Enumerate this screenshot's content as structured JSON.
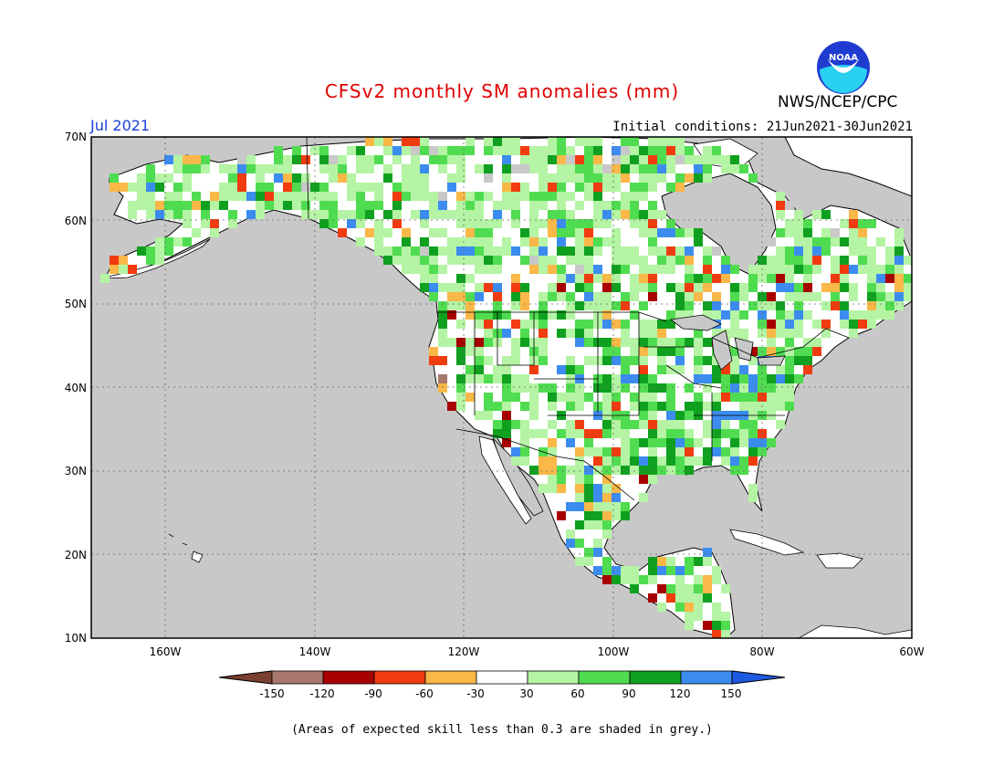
{
  "header": {
    "title": "CFSv2 monthly SM anomalies (mm)",
    "month": "Jul 2021",
    "initial_conditions": "Initial conditions: 21Jun2021-30Jun2021",
    "organization": "NWS/NCEP/CPC",
    "logo_text": "NOAA"
  },
  "map": {
    "lat_labels": [
      "70N",
      "60N",
      "50N",
      "40N",
      "30N",
      "20N",
      "10N"
    ],
    "lon_labels": [
      "160W",
      "140W",
      "120W",
      "100W",
      "80W",
      "60W"
    ],
    "colors": {
      "ocean_grey": "#c8c8c8",
      "land_white": "#ffffff",
      "land_neutral": "#ffffff"
    }
  },
  "colorbar": {
    "labels": [
      "-150",
      "-120",
      "-90",
      "-60",
      "-30",
      "30",
      "60",
      "90",
      "120",
      "150"
    ],
    "colors": [
      "#7b3f2f",
      "#a8786c",
      "#a80000",
      "#f03c10",
      "#f9b848",
      "#ffffff",
      "#b4f4a4",
      "#50dc50",
      "#10a020",
      "#3c8cf0",
      "#1e5ae0"
    ]
  },
  "footer": {
    "note": "(Areas of expected skill less than 0.3 are shaded in grey.)"
  }
}
